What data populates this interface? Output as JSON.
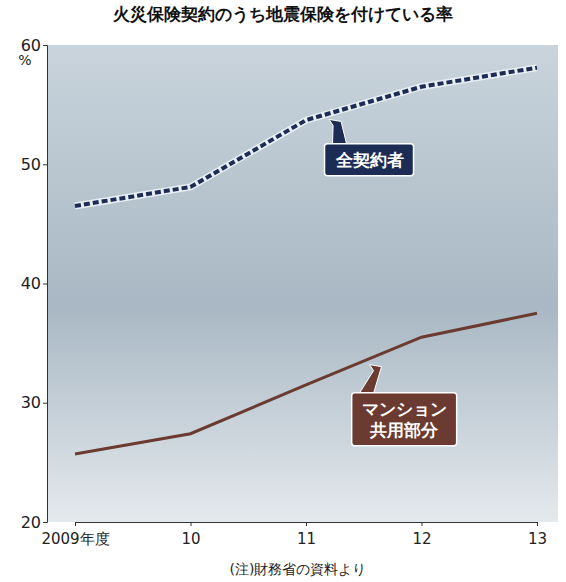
{
  "chart_data": {
    "type": "line",
    "title": "火災保険契約のうち地震保険を付けている率",
    "y_label": "%",
    "note": "(注)財務省の資料より",
    "categories": [
      "2009年度",
      "10",
      "11",
      "12",
      "13"
    ],
    "series": [
      {
        "name": "全契約者",
        "color": "#1c2c55",
        "line_style": "dotted",
        "values": [
          46.5,
          48.1,
          53.7,
          56.5,
          58.1
        ]
      },
      {
        "name": "マンション共用部分",
        "color": "#6b3a30",
        "line_style": "solid",
        "values": [
          25.7,
          27.4,
          31.5,
          35.5,
          37.5
        ]
      }
    ],
    "ylim": [
      20,
      60
    ],
    "yticks": [
      20,
      30,
      40,
      50,
      60
    ],
    "grid": false
  }
}
